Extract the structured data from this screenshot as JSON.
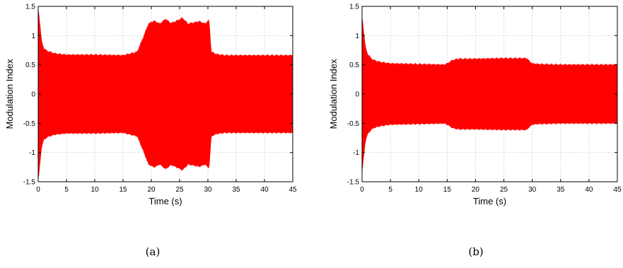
{
  "chart_data": [
    {
      "type": "area",
      "panel": "a",
      "caption": "(a)",
      "xlabel": "Time (s)",
      "ylabel": "Modulation Index",
      "xlim": [
        0,
        45
      ],
      "ylim": [
        -1.5,
        1.5
      ],
      "xticks": [
        0,
        5,
        10,
        15,
        20,
        25,
        30,
        35,
        40,
        45
      ],
      "yticks": [
        -1.5,
        -1,
        -0.5,
        0,
        0.5,
        1,
        1.5
      ],
      "yticklabels": [
        "-1.5",
        "-1",
        "-0.5",
        "0",
        "0.5",
        "1",
        "1.5"
      ],
      "grid": true,
      "color": "#ff0000",
      "series": [
        {
          "x": [
            0,
            0.1,
            0.3,
            0.6,
            1,
            1.5,
            2,
            3,
            5,
            10,
            15,
            17.5,
            18.5,
            19.5,
            20.5,
            21.5,
            22.5,
            23.5,
            24.5,
            25.5,
            26.5,
            27.5,
            28.5,
            29.5,
            30.2,
            30.6,
            31.5,
            33,
            35,
            40,
            45
          ],
          "y": [
            1.45,
            1.4,
            1.2,
            0.9,
            0.78,
            0.74,
            0.72,
            0.69,
            0.67,
            0.67,
            0.66,
            0.72,
            0.95,
            1.2,
            1.25,
            1.2,
            1.28,
            1.21,
            1.25,
            1.3,
            1.2,
            1.22,
            1.24,
            1.2,
            1.27,
            0.72,
            0.68,
            0.66,
            0.66,
            0.66,
            0.66
          ]
        }
      ]
    },
    {
      "type": "area",
      "panel": "b",
      "caption": "(b)",
      "xlabel": "Time (s)",
      "ylabel": "Modulation Index",
      "xlim": [
        0,
        45
      ],
      "ylim": [
        -1.5,
        1.5
      ],
      "xticks": [
        0,
        5,
        10,
        15,
        20,
        25,
        30,
        35,
        40,
        45
      ],
      "yticks": [
        -1.5,
        -1,
        -0.5,
        0,
        0.5,
        1,
        1.5
      ],
      "yticklabels": [
        "-1.5",
        "-1",
        "-0.5",
        "0",
        "0.5",
        "1",
        "1.5"
      ],
      "grid": true,
      "color": "#ff0000",
      "series": [
        {
          "x": [
            0,
            0.1,
            0.3,
            0.6,
            1,
            1.5,
            2,
            3,
            5,
            10,
            14.5,
            15,
            16,
            17,
            20,
            25,
            29,
            29.5,
            30,
            31,
            35,
            40,
            45
          ],
          "y": [
            1.32,
            1.25,
            1.05,
            0.8,
            0.68,
            0.62,
            0.58,
            0.55,
            0.52,
            0.51,
            0.5,
            0.52,
            0.58,
            0.6,
            0.6,
            0.61,
            0.61,
            0.56,
            0.52,
            0.51,
            0.5,
            0.5,
            0.5
          ]
        }
      ]
    }
  ]
}
